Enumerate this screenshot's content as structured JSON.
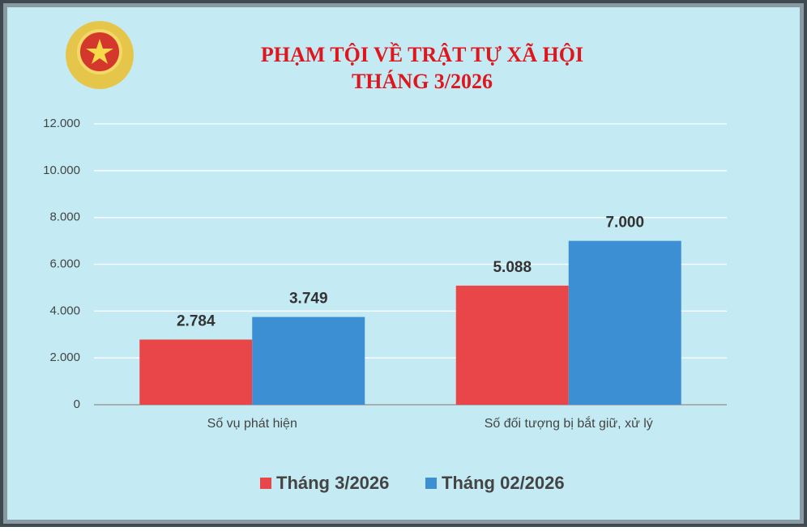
{
  "chart_data": {
    "type": "bar",
    "title": "PHẠM TỘI VỀ TRẬT TỰ XÃ HỘI",
    "subtitle": "THÁNG 3/2026",
    "categories": [
      "Số vụ phát hiện",
      "Số đối tượng bị bắt giữ, xử lý"
    ],
    "series": [
      {
        "name": "Tháng 3/2026",
        "color": "#e84648",
        "values": [
          2784,
          5088
        ],
        "value_labels": [
          "2.784",
          "5.088"
        ]
      },
      {
        "name": "Tháng 02/2026",
        "color": "#3b8fd2",
        "values": [
          3749,
          7000
        ],
        "value_labels": [
          "3.749",
          "7.000"
        ]
      }
    ],
    "ylim": [
      0,
      12000
    ],
    "yticks": [
      0,
      {
        "value": 2000,
        "label": "2.000"
      },
      {
        "value": 4000,
        "label": "4.000"
      },
      {
        "value": 6000,
        "label": "6.000"
      },
      {
        "value": 8000,
        "label": "8.000"
      },
      {
        "value": 10000,
        "label": "10.000"
      },
      {
        "value": 12000,
        "label": "12.000"
      }
    ],
    "grid": true,
    "legend": "bottom"
  }
}
